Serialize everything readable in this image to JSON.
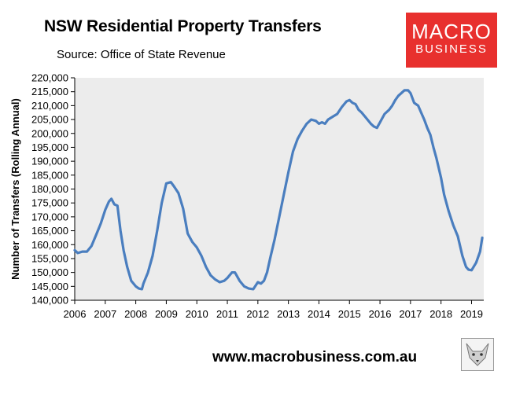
{
  "header": {
    "title": "NSW Residential Property Transfers",
    "subtitle": "Source: Office of State Revenue"
  },
  "logo": {
    "line1": "MACRO",
    "line2": "BUSINESS"
  },
  "footer": {
    "url": "www.macrobusiness.com.au"
  },
  "colors": {
    "line": "#4a7ebf",
    "plot_bg": "#ececec",
    "logo_bg": "#e8302e"
  },
  "chart_data": {
    "type": "line",
    "title": "NSW Residential Property Transfers",
    "subtitle": "Source: Office of State Revenue",
    "xlabel": "",
    "ylabel": "Number of Transfers (Rolling Annual)",
    "xlim": [
      2006,
      2019.4
    ],
    "ylim": [
      140000,
      220000
    ],
    "grid": false,
    "x_ticks": [
      "2006",
      "2007",
      "2008",
      "2009",
      "2010",
      "2011",
      "2012",
      "2013",
      "2014",
      "2015",
      "2016",
      "2017",
      "2018",
      "2019"
    ],
    "y_ticks": [
      "140,000",
      "145,000",
      "150,000",
      "155,000",
      "160,000",
      "165,000",
      "170,000",
      "175,000",
      "180,000",
      "185,000",
      "190,000",
      "195,000",
      "200,000",
      "205,000",
      "210,000",
      "215,000",
      "220,000"
    ],
    "series": [
      {
        "name": "",
        "x": [
          2006.0,
          2006.1,
          2006.25,
          2006.4,
          2006.55,
          2006.7,
          2006.85,
          2007.0,
          2007.12,
          2007.2,
          2007.3,
          2007.4,
          2007.5,
          2007.6,
          2007.72,
          2007.85,
          2008.0,
          2008.1,
          2008.2,
          2008.25,
          2008.4,
          2008.55,
          2008.7,
          2008.85,
          2009.0,
          2009.15,
          2009.25,
          2009.4,
          2009.55,
          2009.7,
          2009.85,
          2010.0,
          2010.15,
          2010.3,
          2010.45,
          2010.6,
          2010.75,
          2010.9,
          2011.0,
          2011.15,
          2011.25,
          2011.3,
          2011.4,
          2011.55,
          2011.7,
          2011.85,
          2012.0,
          2012.1,
          2012.2,
          2012.3,
          2012.4,
          2012.55,
          2012.7,
          2012.85,
          2013.0,
          2013.15,
          2013.3,
          2013.45,
          2013.6,
          2013.75,
          2013.9,
          2014.0,
          2014.1,
          2014.2,
          2014.3,
          2014.45,
          2014.6,
          2014.75,
          2014.9,
          2015.0,
          2015.1,
          2015.2,
          2015.3,
          2015.4,
          2015.55,
          2015.7,
          2015.8,
          2015.9,
          2016.0,
          2016.15,
          2016.3,
          2016.4,
          2016.5,
          2016.6,
          2016.7,
          2016.8,
          2016.92,
          2017.0,
          2017.12,
          2017.25,
          2017.35,
          2017.45,
          2017.55,
          2017.65,
          2017.75,
          2017.85,
          2018.0,
          2018.1,
          2018.25,
          2018.4,
          2018.55,
          2018.7,
          2018.82,
          2018.9,
          2019.0,
          2019.15,
          2019.28,
          2019.35
        ],
        "values": [
          158000,
          157000,
          157500,
          157500,
          159500,
          163500,
          167500,
          172500,
          175500,
          176500,
          174500,
          174000,
          165000,
          158000,
          152000,
          147000,
          145000,
          144200,
          144000,
          146000,
          150000,
          156000,
          165000,
          175000,
          182000,
          182500,
          181000,
          178500,
          173000,
          164000,
          161000,
          159000,
          156000,
          152000,
          149000,
          147500,
          146500,
          147000,
          148000,
          150000,
          150000,
          149000,
          147000,
          145000,
          144200,
          144000,
          146500,
          146000,
          147000,
          150000,
          155000,
          162000,
          170000,
          178000,
          186000,
          193500,
          198000,
          201000,
          203500,
          205000,
          204500,
          203500,
          204000,
          203500,
          205000,
          206000,
          207000,
          209500,
          211500,
          212000,
          211000,
          210500,
          208500,
          207500,
          205500,
          203500,
          202500,
          202000,
          204000,
          207000,
          208500,
          210000,
          212000,
          213500,
          214500,
          215500,
          215500,
          214500,
          211000,
          210000,
          207500,
          205000,
          202000,
          199500,
          195000,
          191000,
          184000,
          178000,
          172000,
          167000,
          163000,
          156000,
          152000,
          151000,
          150800,
          153500,
          157500,
          162500
        ]
      }
    ]
  }
}
